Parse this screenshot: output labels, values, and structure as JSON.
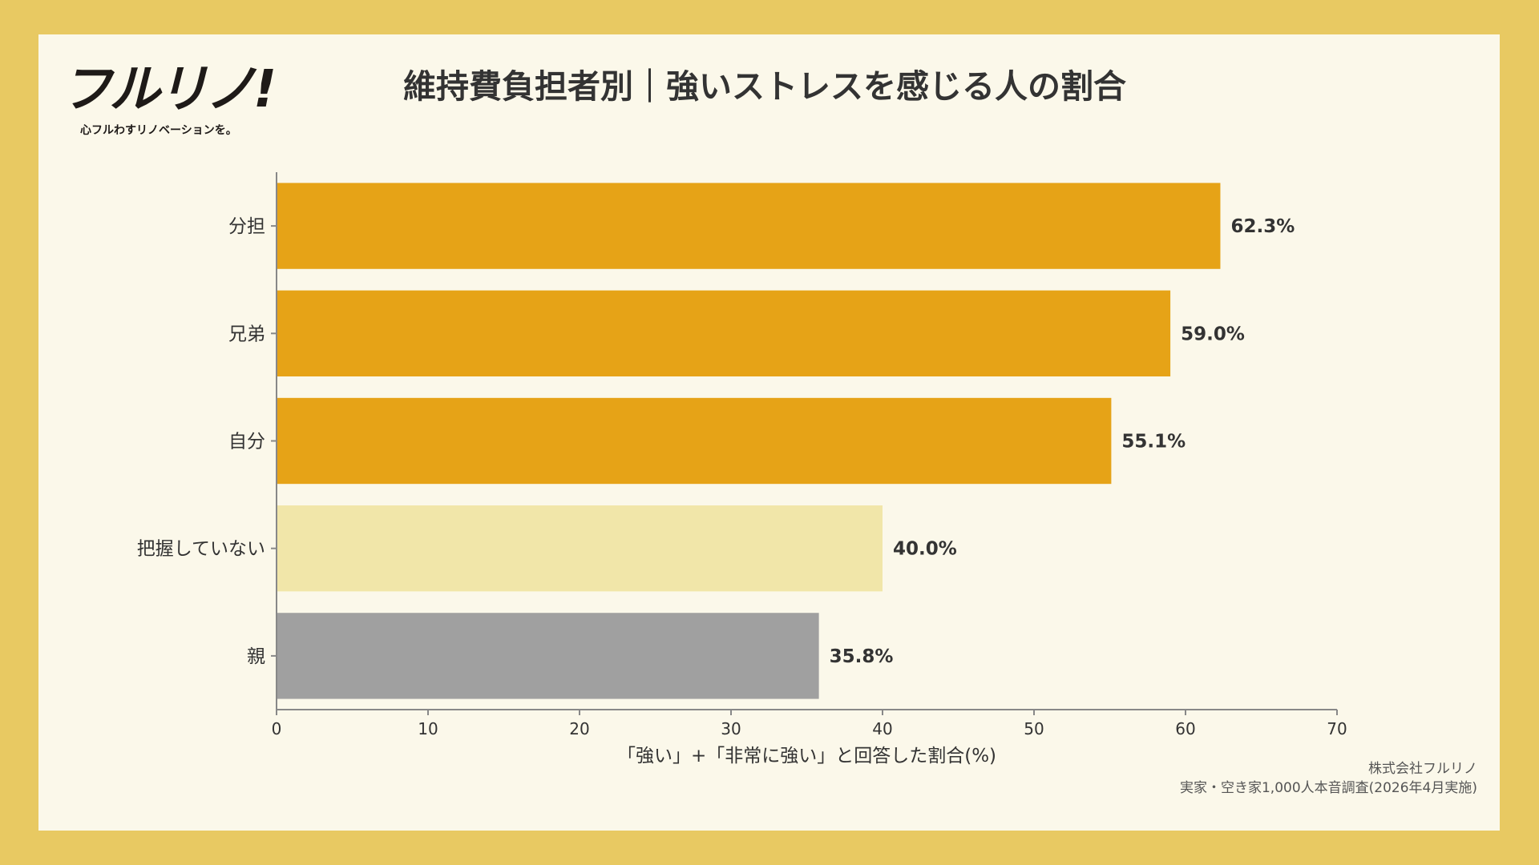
{
  "logo": {
    "mark": "フルリノ!",
    "tagline": "心フルわすリノベーションを。"
  },
  "title": "維持費負担者別｜強いストレスを感じる人の割合",
  "credit": {
    "line1": "株式会社フルリノ",
    "line2": "実家・空き家1,000人本音調査(2026年4月実施)"
  },
  "colors": {
    "background": "#E8C962",
    "panel": "#FBF8EA",
    "highlight": "#E6A317",
    "light": "#F1E6A9",
    "gray": "#A0A0A0",
    "text": "#333333"
  },
  "chart_data": {
    "type": "bar",
    "orientation": "horizontal",
    "categories": [
      "分担",
      "兄弟",
      "自分",
      "把握していない",
      "親"
    ],
    "values": [
      62.3,
      59.0,
      55.1,
      40.0,
      35.8
    ],
    "value_labels": [
      "62.3%",
      "59.0%",
      "55.1%",
      "40.0%",
      "35.8%"
    ],
    "bar_colors": [
      "#E6A317",
      "#E6A317",
      "#E6A317",
      "#F1E6A9",
      "#A0A0A0"
    ],
    "xlabel": "「強い」+「非常に強い」と回答した割合(%)",
    "ylabel": "",
    "xlim": [
      0,
      70
    ],
    "xticks": [
      0,
      10,
      20,
      30,
      40,
      50,
      60,
      70
    ],
    "grid": false,
    "legend": "none"
  }
}
